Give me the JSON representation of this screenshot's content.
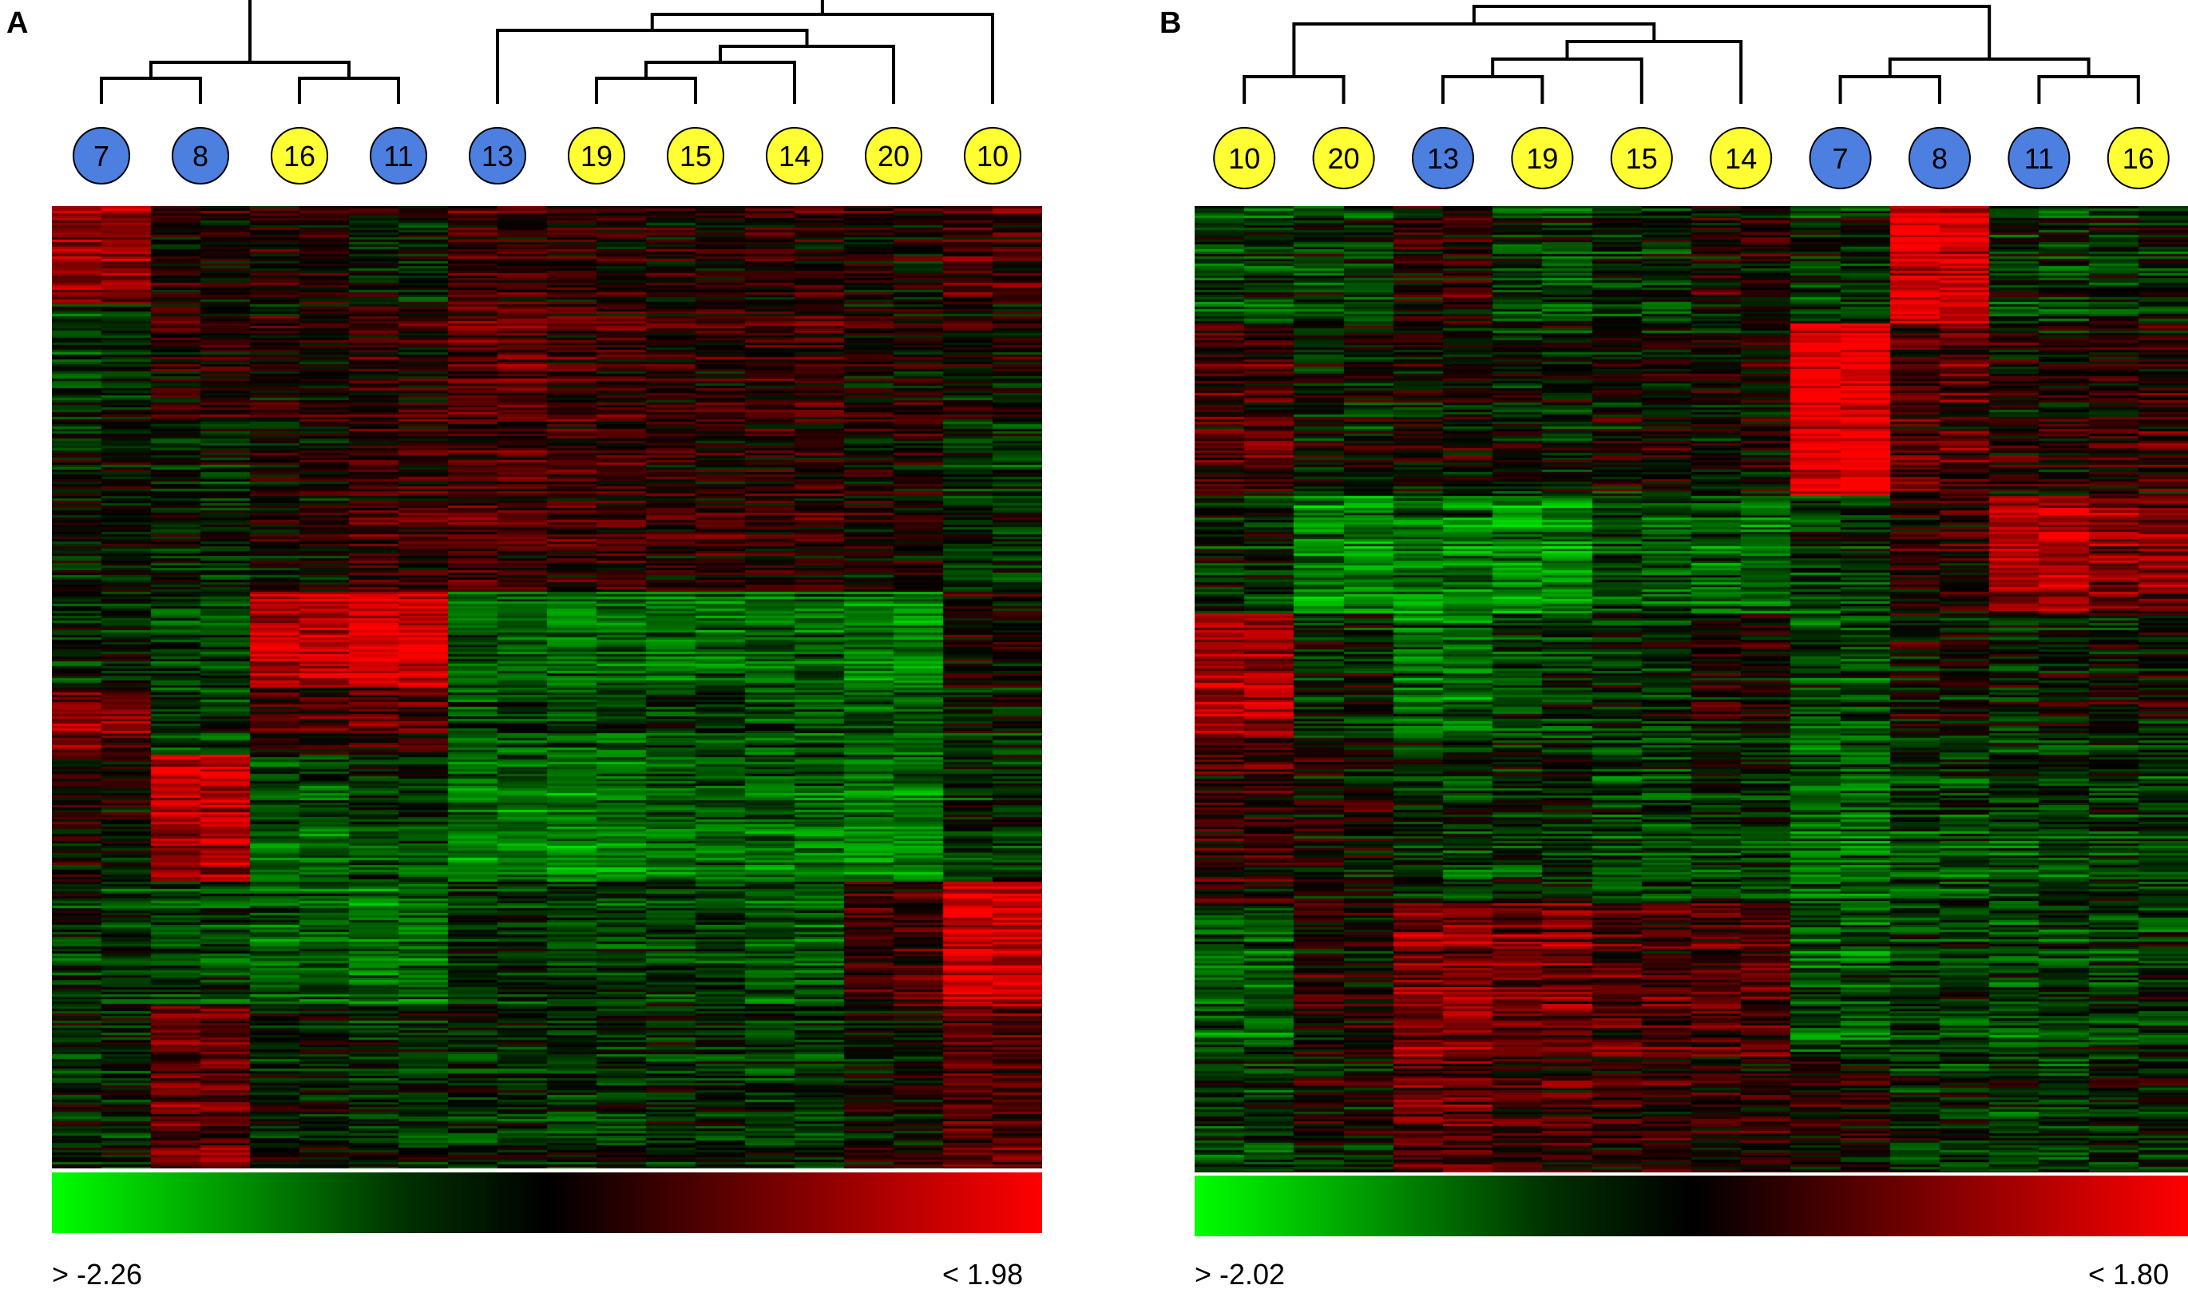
{
  "colors": {
    "blue_sample": "#4d7fe0",
    "yellow_sample": "#ffff33",
    "low": "#00ff00",
    "mid": "#000000",
    "high": "#ff0000"
  },
  "chart_data": [
    {
      "type": "heatmap",
      "panel_label": "A",
      "samples": [
        {
          "label": "7",
          "group": "blue"
        },
        {
          "label": "8",
          "group": "blue"
        },
        {
          "label": "16",
          "group": "yellow"
        },
        {
          "label": "11",
          "group": "blue"
        },
        {
          "label": "13",
          "group": "blue"
        },
        {
          "label": "19",
          "group": "yellow"
        },
        {
          "label": "15",
          "group": "yellow"
        },
        {
          "label": "14",
          "group": "yellow"
        },
        {
          "label": "20",
          "group": "yellow"
        },
        {
          "label": "10",
          "group": "yellow"
        }
      ],
      "dendrogram": [
        [
          0,
          1
        ],
        [
          2,
          3
        ],
        [
          10,
          11
        ],
        [
          5,
          6
        ],
        [
          13,
          7
        ],
        [
          14,
          8
        ],
        [
          4,
          15
        ],
        [
          16,
          9
        ],
        [
          12,
          17
        ]
      ],
      "colorscale": {
        "min_label": "> -2.26",
        "max_label": "< 1.98",
        "min": -2.26,
        "max": 1.98
      },
      "gene_blocks": [
        {
          "rows": [
            0,
            0.1
          ],
          "values": [
            0.9,
            0.1,
            0.1,
            -0.1,
            0.3,
            0.2,
            0.1,
            0.2,
            0.1,
            0.4
          ]
        },
        {
          "rows": [
            0.1,
            0.22
          ],
          "values": [
            -0.3,
            0.2,
            0.1,
            0.2,
            0.5,
            0.3,
            0.2,
            0.3,
            0.1,
            0.0
          ]
        },
        {
          "rows": [
            0.22,
            0.4
          ],
          "values": [
            -0.1,
            -0.2,
            0.0,
            0.3,
            0.4,
            0.3,
            0.2,
            0.2,
            0.1,
            -0.3
          ]
        },
        {
          "rows": [
            0.4,
            0.5
          ],
          "values": [
            -0.2,
            -0.4,
            1.1,
            1.3,
            -0.6,
            -0.7,
            -0.7,
            -0.6,
            -0.8,
            0.1
          ]
        },
        {
          "rows": [
            0.5,
            0.57
          ],
          "values": [
            0.7,
            -0.4,
            0.3,
            0.4,
            -0.5,
            -0.5,
            -0.4,
            -0.5,
            -0.6,
            -0.2
          ]
        },
        {
          "rows": [
            0.57,
            0.7
          ],
          "values": [
            0.0,
            1.0,
            -0.6,
            -0.4,
            -0.8,
            -0.9,
            -0.7,
            -0.7,
            -0.9,
            -0.3
          ]
        },
        {
          "rows": [
            0.7,
            0.83
          ],
          "values": [
            -0.3,
            -0.4,
            -0.6,
            -0.7,
            -0.3,
            -0.4,
            -0.4,
            -0.6,
            0.3,
            1.2
          ]
        },
        {
          "rows": [
            0.83,
            1.0
          ],
          "values": [
            -0.2,
            0.6,
            -0.1,
            -0.2,
            -0.2,
            -0.3,
            -0.2,
            -0.3,
            0.0,
            0.5
          ]
        }
      ]
    },
    {
      "type": "heatmap",
      "panel_label": "B",
      "samples": [
        {
          "label": "10",
          "group": "yellow"
        },
        {
          "label": "20",
          "group": "yellow"
        },
        {
          "label": "13",
          "group": "blue"
        },
        {
          "label": "19",
          "group": "yellow"
        },
        {
          "label": "15",
          "group": "yellow"
        },
        {
          "label": "14",
          "group": "yellow"
        },
        {
          "label": "7",
          "group": "blue"
        },
        {
          "label": "8",
          "group": "blue"
        },
        {
          "label": "11",
          "group": "blue"
        },
        {
          "label": "16",
          "group": "yellow"
        }
      ],
      "dendrogram": [
        [
          0,
          1
        ],
        [
          2,
          3
        ],
        [
          11,
          4
        ],
        [
          12,
          5
        ],
        [
          6,
          7
        ],
        [
          8,
          9
        ],
        [
          10,
          13
        ],
        [
          14,
          15
        ],
        [
          16,
          17
        ]
      ],
      "colorscale": {
        "min_label": "> -2.02",
        "max_label": "< 1.80",
        "min": -2.02,
        "max": 1.8
      },
      "gene_blocks": [
        {
          "rows": [
            0,
            0.12
          ],
          "values": [
            -0.4,
            -0.3,
            0.2,
            -0.3,
            -0.2,
            0.1,
            -0.2,
            1.2,
            -0.3,
            -0.2
          ]
        },
        {
          "rows": [
            0.12,
            0.3
          ],
          "values": [
            0.3,
            -0.1,
            0.0,
            -0.1,
            0.0,
            0.0,
            1.3,
            0.4,
            0.1,
            0.2
          ]
        },
        {
          "rows": [
            0.3,
            0.42
          ],
          "values": [
            -0.2,
            -0.8,
            -0.7,
            -0.8,
            -0.5,
            -0.6,
            -0.3,
            0.2,
            0.9,
            0.7
          ]
        },
        {
          "rows": [
            0.42,
            0.55
          ],
          "values": [
            0.9,
            -0.1,
            -0.6,
            -0.3,
            -0.2,
            0.1,
            -0.4,
            0.0,
            -0.1,
            0.0
          ]
        },
        {
          "rows": [
            0.55,
            0.72
          ],
          "values": [
            0.2,
            0.0,
            -0.3,
            -0.2,
            -0.4,
            -0.3,
            -0.6,
            -0.4,
            -0.4,
            -0.3
          ]
        },
        {
          "rows": [
            0.72,
            0.88
          ],
          "values": [
            -0.5,
            0.1,
            0.7,
            0.6,
            0.4,
            0.4,
            -0.5,
            -0.3,
            -0.4,
            -0.3
          ]
        },
        {
          "rows": [
            0.88,
            1.0
          ],
          "values": [
            -0.3,
            0.0,
            0.5,
            0.3,
            0.2,
            0.2,
            0.1,
            -0.2,
            -0.3,
            -0.1
          ]
        }
      ]
    }
  ]
}
